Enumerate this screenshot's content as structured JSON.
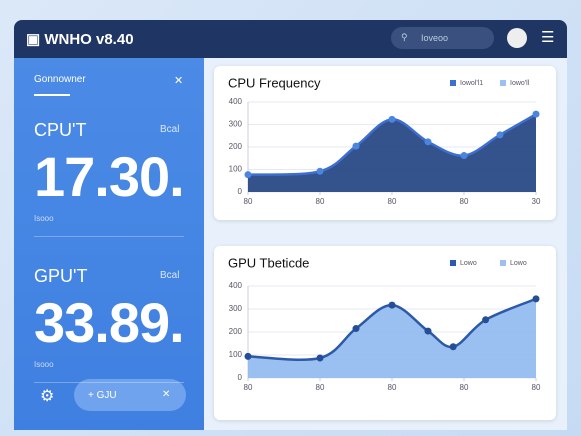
{
  "header": {
    "title": "WNHO v8.40",
    "search": "Ioveoo"
  },
  "sidebar": {
    "label": "Gonnowner",
    "stats": [
      {
        "name": "CPU'T",
        "unit": "Bcal",
        "value": "17.30.",
        "note": "Isooo"
      },
      {
        "name": "GPU'T",
        "unit": "Bcal",
        "value": "33.89.",
        "note": "Isooo"
      }
    ],
    "button": "+ GJU"
  },
  "charts": [
    {
      "type": "line",
      "title": "CPU Frequency",
      "legend": [
        "Iowol'l1",
        "Iowo'll"
      ],
      "colors": {
        "line": "#3d6fd0",
        "fill": "#1e3f7e",
        "dot": "#4a86e0"
      },
      "x": [
        0,
        2,
        3,
        4,
        5,
        6,
        7,
        8
      ],
      "values": [
        77,
        92,
        204,
        323,
        223,
        162,
        254,
        346
      ],
      "xlim": [
        0,
        8
      ],
      "xticks": [
        {
          "value": 0,
          "label": "80"
        },
        {
          "value": 2,
          "label": "80"
        },
        {
          "value": 4,
          "label": "80"
        },
        {
          "value": 6,
          "label": "80"
        },
        {
          "value": 8,
          "label": "30"
        }
      ],
      "ylim": [
        0,
        400
      ],
      "yticks": [
        0,
        100,
        200,
        300,
        400
      ]
    },
    {
      "type": "line",
      "title": "GPU Tbeticde",
      "legend": [
        "Lowo",
        "Lowo"
      ],
      "colors": {
        "line": "#2c5aa8",
        "fill": "#8fb8f0",
        "dot": "#254e96"
      },
      "x": [
        0,
        2,
        3,
        4,
        5,
        5.7,
        6.6,
        8
      ],
      "values": [
        94,
        87,
        215,
        317,
        204,
        136,
        253,
        344
      ],
      "xlim": [
        0,
        8
      ],
      "xticks": [
        {
          "value": 0,
          "label": "80"
        },
        {
          "value": 2,
          "label": "80"
        },
        {
          "value": 4,
          "label": "80"
        },
        {
          "value": 6,
          "label": "80"
        },
        {
          "value": 8,
          "label": "80"
        }
      ],
      "ylim": [
        0,
        400
      ],
      "yticks": [
        0,
        100,
        200,
        300,
        400
      ]
    }
  ]
}
